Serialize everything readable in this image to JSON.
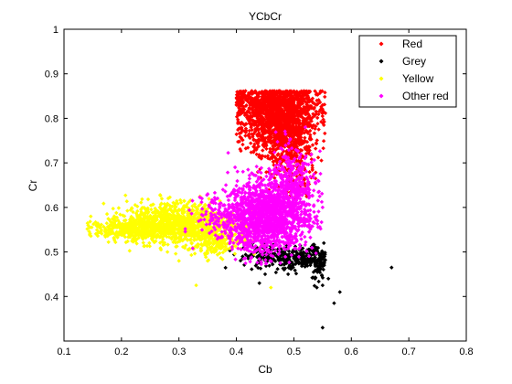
{
  "chart_data": {
    "type": "scatter",
    "title": "YCbCr",
    "xlabel": "Cb",
    "ylabel": "Cr",
    "xlim": [
      0.1,
      0.8
    ],
    "ylim": [
      0.3,
      1.0
    ],
    "xticks": [
      "0.1",
      "0.2",
      "0.3",
      "0.4",
      "0.5",
      "0.6",
      "0.7",
      "0.8"
    ],
    "yticks": [
      "1",
      "0.9",
      "0.8",
      "0.7",
      "0.6",
      "0.5",
      "0.4"
    ],
    "grid": false,
    "legend_position": "top-right",
    "series": [
      {
        "name": "Red",
        "color": "#ff0000",
        "marker": "diamond",
        "clusters": [
          {
            "cx": 0.475,
            "cy": 0.8,
            "sx": 0.032,
            "sy": 0.04,
            "n": 1400
          },
          {
            "cx": 0.45,
            "cy": 0.835,
            "sx": 0.045,
            "sy": 0.015,
            "n": 300
          },
          {
            "cx": 0.49,
            "cy": 0.74,
            "sx": 0.02,
            "sy": 0.04,
            "n": 250
          },
          {
            "cx": 0.51,
            "cy": 0.68,
            "sx": 0.012,
            "sy": 0.04,
            "n": 80
          }
        ],
        "points": [
          [
            0.405,
            0.86
          ],
          [
            0.52,
            0.86
          ],
          [
            0.54,
            0.84
          ],
          [
            0.55,
            0.83
          ],
          [
            0.42,
            0.85
          ],
          [
            0.53,
            0.72
          ],
          [
            0.5,
            0.62
          ]
        ]
      },
      {
        "name": "Grey",
        "color": "#000000",
        "marker": "diamond",
        "clusters": [
          {
            "cx": 0.5,
            "cy": 0.485,
            "sx": 0.035,
            "sy": 0.012,
            "n": 260
          },
          {
            "cx": 0.54,
            "cy": 0.48,
            "sx": 0.008,
            "sy": 0.025,
            "n": 70
          },
          {
            "cx": 0.45,
            "cy": 0.5,
            "sx": 0.02,
            "sy": 0.012,
            "n": 60
          }
        ],
        "points": [
          [
            0.67,
            0.465
          ],
          [
            0.55,
            0.33
          ],
          [
            0.58,
            0.41
          ],
          [
            0.57,
            0.385
          ],
          [
            0.55,
            0.425
          ],
          [
            0.44,
            0.43
          ],
          [
            0.45,
            0.45
          ],
          [
            0.42,
            0.49
          ],
          [
            0.56,
            0.44
          ],
          [
            0.54,
            0.42
          ],
          [
            0.49,
            0.45
          ]
        ]
      },
      {
        "name": "Yellow",
        "color": "#ffff00",
        "marker": "diamond",
        "clusters": [
          {
            "cx": 0.3,
            "cy": 0.565,
            "sx": 0.045,
            "sy": 0.022,
            "n": 900
          },
          {
            "cx": 0.22,
            "cy": 0.55,
            "sx": 0.035,
            "sy": 0.013,
            "n": 350
          },
          {
            "cx": 0.36,
            "cy": 0.53,
            "sx": 0.03,
            "sy": 0.02,
            "n": 300
          }
        ],
        "points": [
          [
            0.145,
            0.555
          ],
          [
            0.16,
            0.545
          ],
          [
            0.33,
            0.425
          ],
          [
            0.46,
            0.42
          ],
          [
            0.3,
            0.48
          ],
          [
            0.28,
            0.5
          ],
          [
            0.35,
            0.48
          ]
        ]
      },
      {
        "name": "Other red",
        "color": "#ff00ff",
        "marker": "diamond",
        "clusters": [
          {
            "cx": 0.455,
            "cy": 0.58,
            "sx": 0.035,
            "sy": 0.04,
            "n": 1500
          },
          {
            "cx": 0.5,
            "cy": 0.65,
            "sx": 0.02,
            "sy": 0.04,
            "n": 300
          },
          {
            "cx": 0.38,
            "cy": 0.575,
            "sx": 0.025,
            "sy": 0.025,
            "n": 150
          }
        ],
        "points": [
          [
            0.35,
            0.63
          ],
          [
            0.36,
            0.61
          ],
          [
            0.55,
            0.6
          ],
          [
            0.54,
            0.58
          ],
          [
            0.52,
            0.78
          ],
          [
            0.38,
            0.58
          ],
          [
            0.34,
            0.62
          ]
        ]
      }
    ]
  }
}
